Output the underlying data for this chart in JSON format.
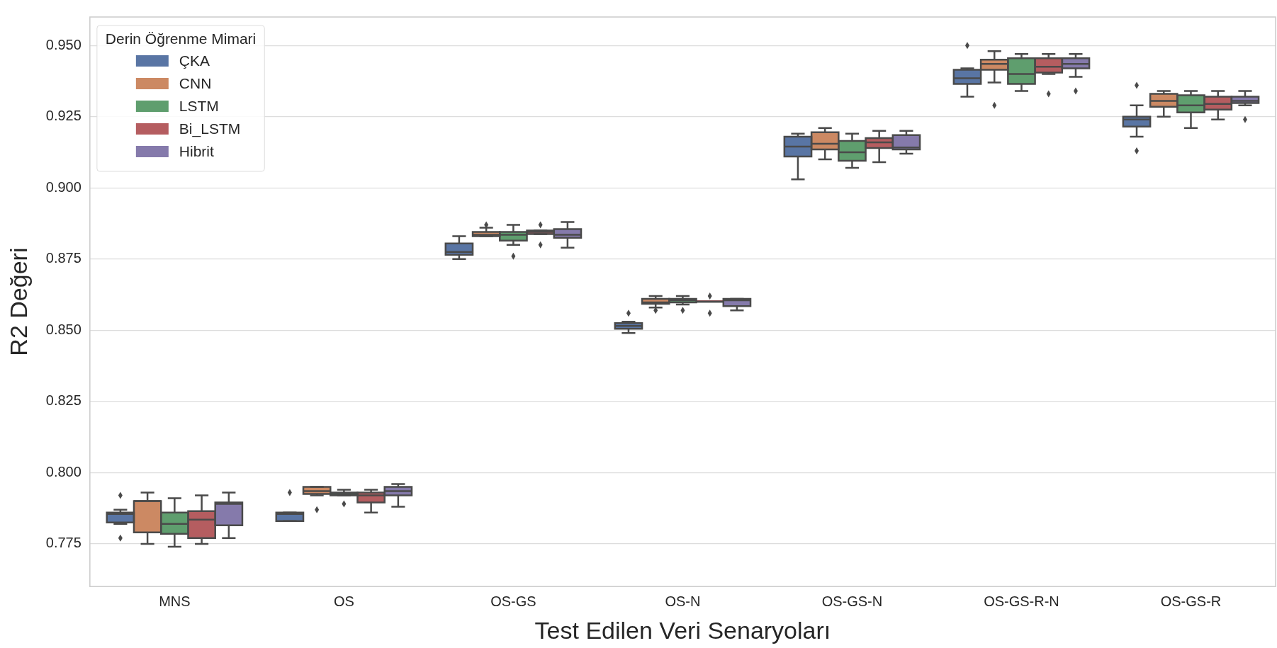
{
  "chart_data": {
    "type": "box",
    "xlabel": "Test Edilen Veri Senaryoları",
    "ylabel": "R2 Değeri",
    "legend_title": "Derin Öğrenme Mimari",
    "legend": "top left",
    "grid": "y",
    "categories": [
      "MNS",
      "OS",
      "OS-GS",
      "OS-N",
      "OS-GS-N",
      "OS-GS-R-N",
      "OS-GS-R"
    ],
    "ylim": [
      0.76,
      0.96
    ],
    "yticks": [
      0.775,
      {
        "value": 0.8,
        "label": "0.800"
      },
      0.825,
      {
        "value": 0.85,
        "label": "0.850"
      },
      0.875,
      {
        "value": 0.9,
        "label": "0.900"
      },
      0.925,
      {
        "value": 0.95,
        "label": "0.950"
      }
    ],
    "series": [
      {
        "name": "ÇKA",
        "color": "#5975a4",
        "boxes": [
          {
            "low": 0.782,
            "q1": 0.7825,
            "median": 0.7855,
            "q3": 0.786,
            "high": 0.787,
            "outliers": [
              0.792,
              0.777
            ]
          },
          {
            "low": 0.783,
            "q1": 0.783,
            "median": 0.7855,
            "q3": 0.786,
            "high": 0.786,
            "outliers": [
              0.793
            ]
          },
          {
            "low": 0.875,
            "q1": 0.8765,
            "median": 0.8775,
            "q3": 0.8805,
            "high": 0.883
          },
          {
            "low": 0.849,
            "q1": 0.8505,
            "median": 0.8515,
            "q3": 0.8525,
            "high": 0.853,
            "outliers": [
              0.856
            ]
          },
          {
            "low": 0.903,
            "q1": 0.911,
            "median": 0.9145,
            "q3": 0.918,
            "high": 0.919
          },
          {
            "low": 0.932,
            "q1": 0.9365,
            "median": 0.9385,
            "q3": 0.9415,
            "high": 0.942,
            "outliers": [
              0.95
            ]
          },
          {
            "low": 0.918,
            "q1": 0.9215,
            "median": 0.924,
            "q3": 0.925,
            "high": 0.929,
            "outliers": [
              0.936,
              0.913
            ]
          }
        ]
      },
      {
        "name": "CNN",
        "color": "#cc8963",
        "boxes": [
          {
            "low": 0.775,
            "q1": 0.779,
            "median": 0.79,
            "q3": 0.79,
            "high": 0.793
          },
          {
            "low": 0.792,
            "q1": 0.7925,
            "median": 0.7935,
            "q3": 0.795,
            "high": 0.795,
            "outliers": [
              0.787
            ]
          },
          {
            "low": 0.883,
            "q1": 0.883,
            "median": 0.8835,
            "q3": 0.8845,
            "high": 0.886,
            "outliers": [
              0.887
            ]
          },
          {
            "low": 0.858,
            "q1": 0.8593,
            "median": 0.8598,
            "q3": 0.861,
            "high": 0.862,
            "outliers": [
              0.857
            ]
          },
          {
            "low": 0.91,
            "q1": 0.9135,
            "median": 0.9155,
            "q3": 0.9195,
            "high": 0.921
          },
          {
            "low": 0.937,
            "q1": 0.9415,
            "median": 0.9435,
            "q3": 0.945,
            "high": 0.948,
            "outliers": [
              0.929
            ]
          },
          {
            "low": 0.925,
            "q1": 0.9285,
            "median": 0.9305,
            "q3": 0.933,
            "high": 0.934
          }
        ]
      },
      {
        "name": "LSTM",
        "color": "#5f9e6e",
        "boxes": [
          {
            "low": 0.774,
            "q1": 0.7785,
            "median": 0.782,
            "q3": 0.786,
            "high": 0.791
          },
          {
            "low": 0.792,
            "q1": 0.792,
            "median": 0.7925,
            "q3": 0.793,
            "high": 0.794,
            "outliers": [
              0.789
            ]
          },
          {
            "low": 0.88,
            "q1": 0.8815,
            "median": 0.8835,
            "q3": 0.8845,
            "high": 0.887,
            "outliers": [
              0.876
            ]
          },
          {
            "low": 0.859,
            "q1": 0.8598,
            "median": 0.8605,
            "q3": 0.861,
            "high": 0.862,
            "outliers": [
              0.857
            ]
          },
          {
            "low": 0.907,
            "q1": 0.9095,
            "median": 0.9125,
            "q3": 0.9165,
            "high": 0.919
          },
          {
            "low": 0.934,
            "q1": 0.9365,
            "median": 0.94,
            "q3": 0.9455,
            "high": 0.947
          },
          {
            "low": 0.921,
            "q1": 0.9265,
            "median": 0.929,
            "q3": 0.9325,
            "high": 0.934
          }
        ]
      },
      {
        "name": "Bi_LSTM",
        "color": "#b55d60",
        "boxes": [
          {
            "low": 0.775,
            "q1": 0.777,
            "median": 0.7835,
            "q3": 0.7865,
            "high": 0.792
          },
          {
            "low": 0.786,
            "q1": 0.7895,
            "median": 0.792,
            "q3": 0.793,
            "high": 0.794
          },
          {
            "low": 0.8838,
            "q1": 0.8838,
            "median": 0.8845,
            "q3": 0.885,
            "high": 0.885,
            "outliers": [
              0.887,
              0.88
            ]
          },
          {
            "low": 0.86,
            "q1": 0.86,
            "median": 0.86,
            "q3": 0.86,
            "high": 0.86,
            "outliers": [
              0.862,
              0.856
            ]
          },
          {
            "low": 0.909,
            "q1": 0.914,
            "median": 0.916,
            "q3": 0.9175,
            "high": 0.92
          },
          {
            "low": 0.94,
            "q1": 0.9405,
            "median": 0.9425,
            "q3": 0.9455,
            "high": 0.947,
            "outliers": [
              0.933
            ]
          },
          {
            "low": 0.924,
            "q1": 0.9275,
            "median": 0.9295,
            "q3": 0.932,
            "high": 0.934
          }
        ]
      },
      {
        "name": "Hibrit",
        "color": "#857aab",
        "boxes": [
          {
            "low": 0.777,
            "q1": 0.7815,
            "median": 0.789,
            "q3": 0.7895,
            "high": 0.793
          },
          {
            "low": 0.788,
            "q1": 0.792,
            "median": 0.7935,
            "q3": 0.795,
            "high": 0.796
          },
          {
            "low": 0.879,
            "q1": 0.8825,
            "median": 0.8835,
            "q3": 0.8855,
            "high": 0.888
          },
          {
            "low": 0.857,
            "q1": 0.8585,
            "median": 0.8605,
            "q3": 0.861,
            "high": 0.861
          },
          {
            "low": 0.912,
            "q1": 0.9135,
            "median": 0.9142,
            "q3": 0.9185,
            "high": 0.92
          },
          {
            "low": 0.939,
            "q1": 0.942,
            "median": 0.9435,
            "q3": 0.9455,
            "high": 0.947,
            "outliers": [
              0.934
            ]
          },
          {
            "low": 0.929,
            "q1": 0.9298,
            "median": 0.9305,
            "q3": 0.932,
            "high": 0.934,
            "outliers": [
              0.924
            ]
          }
        ]
      }
    ]
  }
}
